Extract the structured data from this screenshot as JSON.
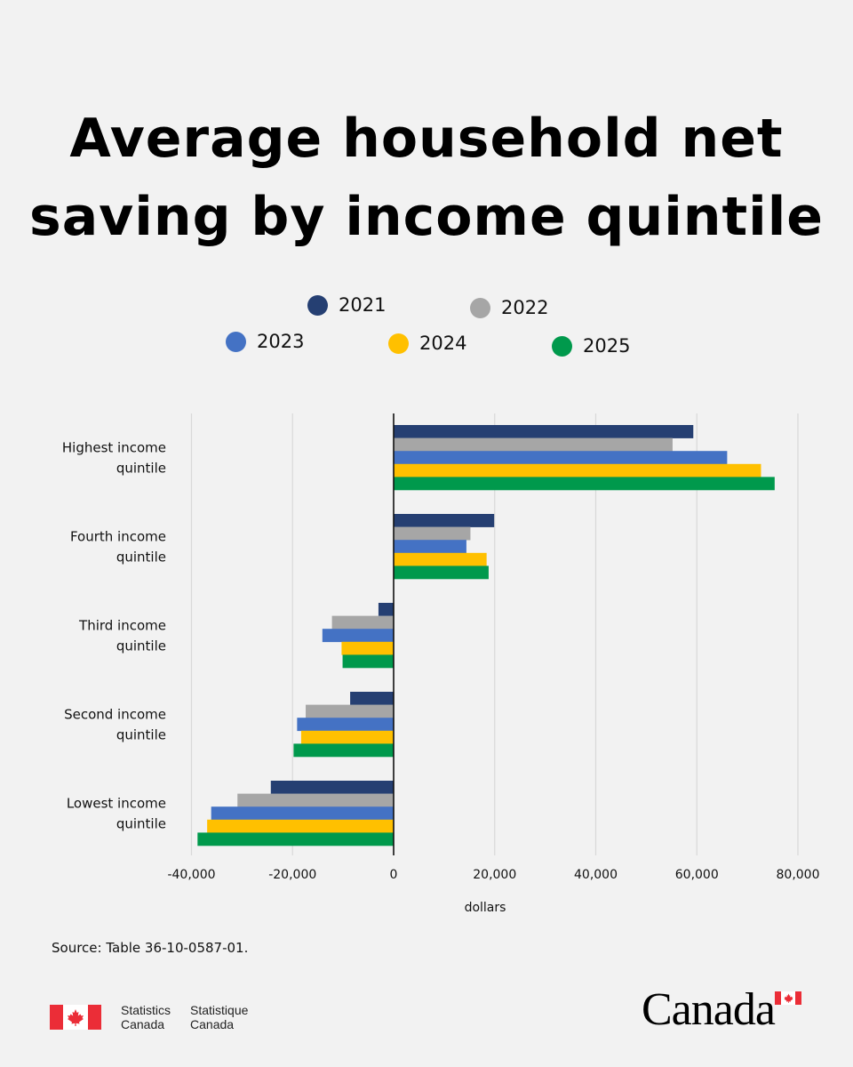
{
  "title_lines": [
    "Average household net",
    "saving by income quintile"
  ],
  "source": "Source: Table 36-10-0587-01.",
  "footer": {
    "signature_en_1": "Statistics",
    "signature_en_2": "Canada",
    "signature_fr_1": "Statistique",
    "signature_fr_2": "Canada",
    "wordmark": "Canada",
    "flag_color": "#eb2d37"
  },
  "chart_data": {
    "type": "bar",
    "orientation": "horizontal",
    "categories": [
      [
        "Highest income",
        "quintile"
      ],
      [
        "Fourth income",
        "quintile"
      ],
      [
        "Third income",
        "quintile"
      ],
      [
        "Second income",
        "quintile"
      ],
      [
        "Lowest income",
        "quintile"
      ]
    ],
    "series": [
      {
        "name": "2021",
        "color": "#253f72",
        "values": [
          59300,
          19900,
          -3000,
          -8600,
          -24300
        ]
      },
      {
        "name": "2022",
        "color": "#a6a6a6",
        "values": [
          55200,
          15200,
          -12200,
          -17400,
          -30900
        ]
      },
      {
        "name": "2023",
        "color": "#4472c4",
        "values": [
          66000,
          14400,
          -14100,
          -19100,
          -36100
        ]
      },
      {
        "name": "2024",
        "color": "#ffc000",
        "values": [
          72700,
          18400,
          -10300,
          -18300,
          -36900
        ]
      },
      {
        "name": "2025",
        "color": "#00994c",
        "values": [
          75400,
          18800,
          -10100,
          -19800,
          -38800
        ]
      }
    ],
    "xlabel": "dollars",
    "xlim": [
      -40000,
      80000
    ],
    "xticks": [
      -40000,
      -20000,
      0,
      20000,
      40000,
      60000,
      80000
    ],
    "xtick_labels": [
      "-40,000",
      "-20,000",
      "0",
      "20,000",
      "40,000",
      "60,000",
      "80,000"
    ],
    "grid": true,
    "legend_position": "top"
  }
}
